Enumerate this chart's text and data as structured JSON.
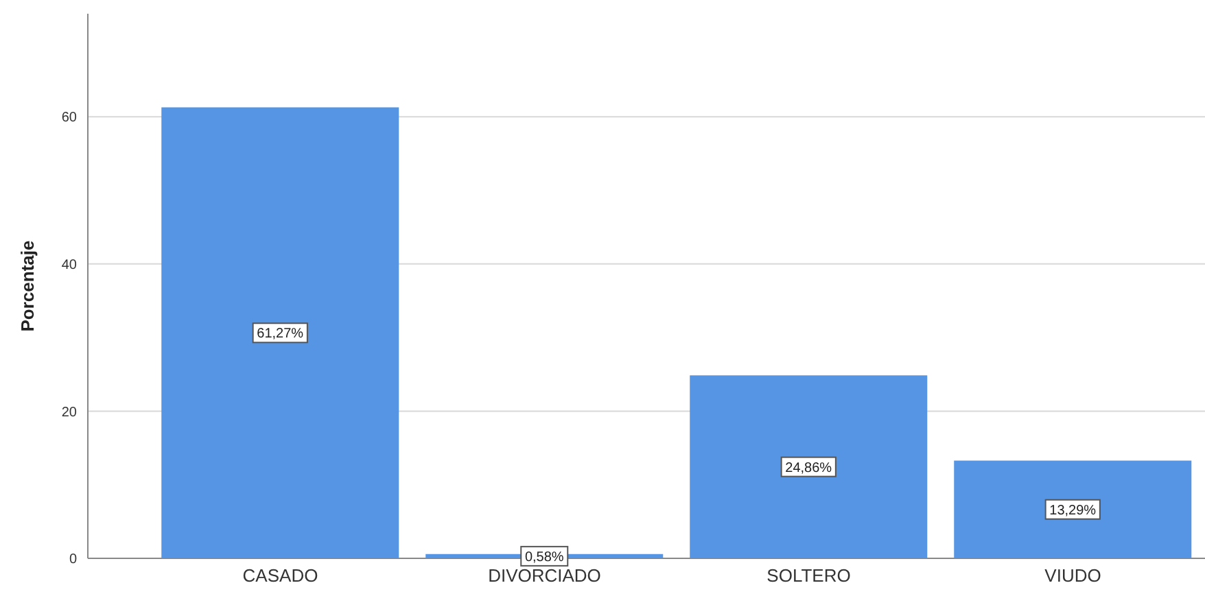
{
  "chart_data": {
    "type": "bar",
    "ylabel": "Porcentaje",
    "categories": [
      "CASADO",
      "DIVORCIADO",
      "SOLTERO",
      "VIUDO"
    ],
    "values": [
      61.27,
      0.58,
      24.86,
      13.29
    ],
    "value_labels": [
      "61,27%",
      "0,58%",
      "24,86%",
      "13,29%"
    ],
    "color": "#5595e3",
    "ylim": [
      0,
      74
    ],
    "yticks": [
      0,
      20,
      40,
      60
    ],
    "grid": "y"
  }
}
